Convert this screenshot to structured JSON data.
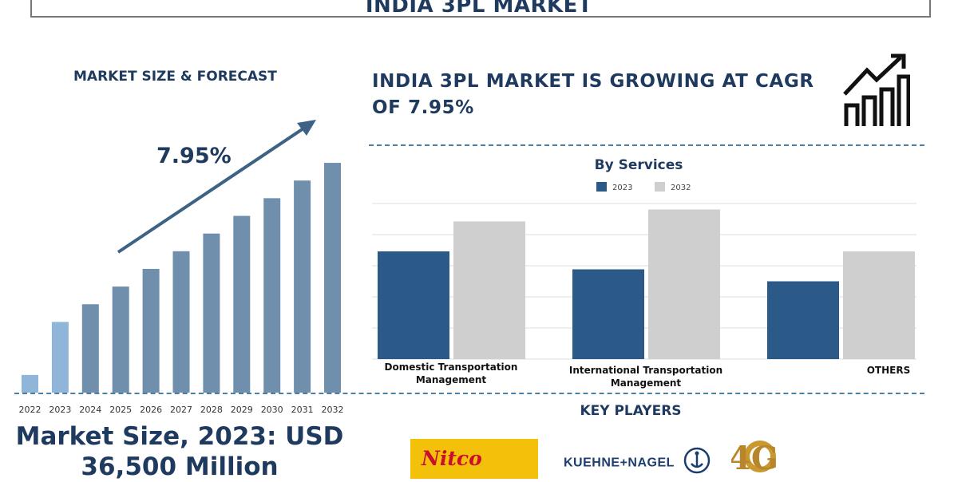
{
  "header": {
    "title": "INDIA 3PL MARKET"
  },
  "left_panel": {
    "title": "MARKET SIZE & FORECAST",
    "cagr_label": "7.95%",
    "market_size_line1": "Market Size, 2023: USD",
    "market_size_line2": "36,500 Million"
  },
  "right_panel": {
    "headline_line1": "INDIA 3PL MARKET IS GROWING AT CAGR",
    "headline_line2": "OF 7.95%",
    "icon": "growth-chart-icon"
  },
  "key_players": {
    "title": "KEY PLAYERS",
    "logos": [
      {
        "name": "nitco-logo",
        "text": "Nitco"
      },
      {
        "name": "kuehne-nagel-logo",
        "text": "KUEHNE+NAGEL"
      },
      {
        "name": "forty-logo",
        "text": "4G"
      }
    ]
  },
  "colors": {
    "title": "#1f3a5f",
    "bar_highlight": "#8fb5d9",
    "bar_main": "#6f8fad",
    "series_2023": "#2b5988",
    "series_2032": "#cfcfcf",
    "dashed": "#4d7fa3",
    "arrow": "#3d6286"
  },
  "chart_data": [
    {
      "type": "bar",
      "title": "",
      "xlabel": "",
      "ylabel": "",
      "categories": [
        "2022",
        "2023",
        "2024",
        "2025",
        "2026",
        "2027",
        "2028",
        "2029",
        "2030",
        "2031",
        "2032"
      ],
      "values": [
        1,
        4,
        5,
        6,
        7,
        8,
        9,
        10,
        11,
        12,
        13
      ],
      "highlight": [
        "2022",
        "2023"
      ],
      "ylim": [
        0,
        13.5
      ],
      "annotation": "7.95%",
      "grid": false
    },
    {
      "type": "bar",
      "title": "By Services",
      "xlabel": "",
      "ylabel": "",
      "categories": [
        "Domestic Transportation Management",
        "International Transportation Management",
        "OTHERS"
      ],
      "series": [
        {
          "name": "2023",
          "values": [
            36,
            30,
            26
          ]
        },
        {
          "name": "2032",
          "values": [
            46,
            50,
            36
          ]
        }
      ],
      "ylim": [
        0,
        52
      ],
      "legend": "top-center",
      "grid": true
    }
  ]
}
